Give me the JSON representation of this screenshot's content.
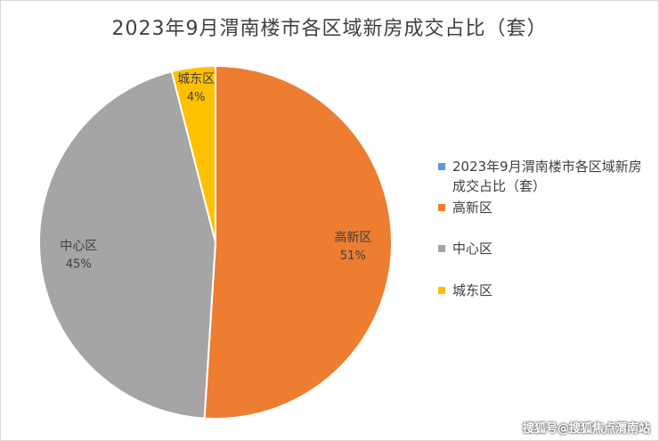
{
  "chart_data": {
    "type": "pie",
    "title": "2023年9月渭南楼市各区域新房成交占比（套）",
    "series_name": "2023年9月渭南楼市各区域新房成交占比（套）",
    "slices": [
      {
        "label": "高新区",
        "value": 51,
        "pct_label": "51%",
        "color": "#ED7D31"
      },
      {
        "label": "中心区",
        "value": 45,
        "pct_label": "45%",
        "color": "#A5A5A5"
      },
      {
        "label": "城东区",
        "value": 4,
        "pct_label": "4%",
        "color": "#FFC000"
      }
    ],
    "legend": [
      {
        "label": "2023年9月渭南楼市各区域新房成交占比（套）",
        "color": "#5B9BD5"
      },
      {
        "label": "高新区",
        "color": "#ED7D31"
      },
      {
        "label": "中心区",
        "color": "#A5A5A5"
      },
      {
        "label": "城东区",
        "color": "#FFC000"
      }
    ],
    "legend_position": "right"
  },
  "watermark": "搜狐号@搜狐焦点渭南站"
}
